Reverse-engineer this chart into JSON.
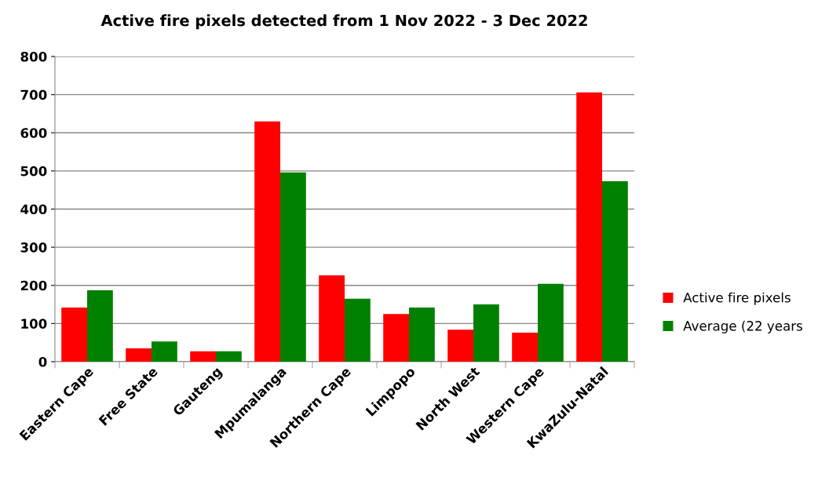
{
  "chart_data": {
    "type": "bar",
    "title": "Active fire pixels detected from 1 Nov 2022 - 3 Dec 2022",
    "categories": [
      "Eastern Cape",
      "Free State",
      "Gauteng",
      "Mpumalanga",
      "Northern Cape",
      "Limpopo",
      "North West",
      "Western Cape",
      "KwaZulu-Natal"
    ],
    "series": [
      {
        "name": "Active fire pixels",
        "color": "#ff0000",
        "values": [
          142,
          35,
          27,
          630,
          226,
          125,
          84,
          76,
          706
        ]
      },
      {
        "name": "Average (22 years",
        "color": "#008000",
        "values": [
          187,
          53,
          27,
          496,
          165,
          142,
          150,
          204,
          473
        ]
      }
    ],
    "ylim": [
      0,
      800
    ],
    "yticks": [
      0,
      100,
      200,
      300,
      400,
      500,
      600,
      700,
      800
    ],
    "grid": "y",
    "legend": "right"
  }
}
